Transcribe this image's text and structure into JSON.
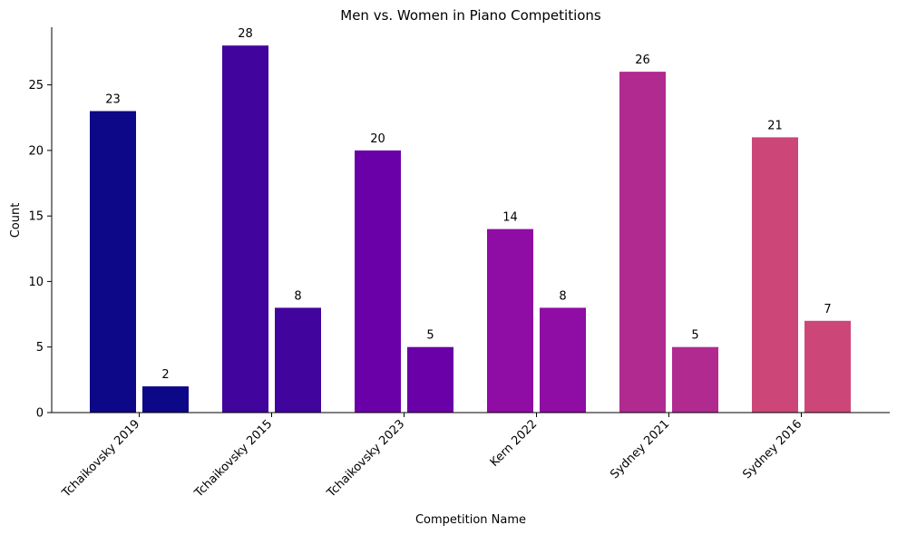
{
  "chart_data": {
    "type": "bar",
    "title": "Men vs. Women in Piano Competitions",
    "xlabel": "Competition Name",
    "ylabel": "Count",
    "categories": [
      "Tchaikovsky 2019",
      "Tchaikovsky 2015",
      "Tchaikovsky 2023",
      "Kern 2022",
      "Sydney 2021",
      "Sydney 2016"
    ],
    "series": [
      {
        "values": [
          23,
          28,
          20,
          14,
          26,
          21
        ]
      },
      {
        "values": [
          2,
          8,
          5,
          8,
          5,
          7
        ]
      }
    ],
    "category_colors": [
      "#0d0887",
      "#41049d",
      "#6a00a8",
      "#8f0da4",
      "#b12a90",
      "#cc4778"
    ],
    "ylim": [
      0,
      29.4
    ],
    "yticks": [
      0,
      5,
      10,
      15,
      20,
      25
    ],
    "grid": false,
    "legend": "none"
  }
}
